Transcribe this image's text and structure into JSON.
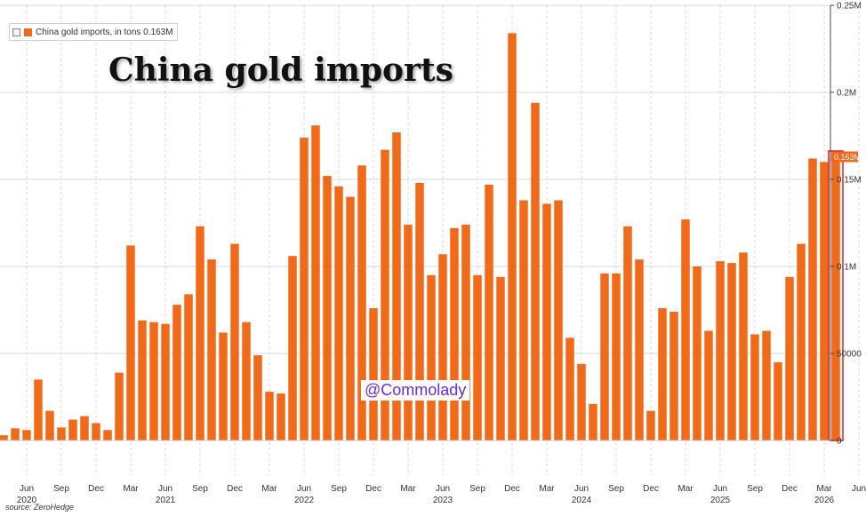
{
  "legend": {
    "label": "China gold imports, in tons 0.163M"
  },
  "title": "China gold imports",
  "watermark": "@Commolady",
  "source": "source: ZeroHedge",
  "last_value_label": "0.163M",
  "colors": {
    "bar": "#f06a1a",
    "highlight_box": "#e02020",
    "grid": "#d9d9d9",
    "label_bg": "#f06a1a"
  },
  "chart_data": {
    "type": "bar",
    "x": [
      "2020-04",
      "2020-05",
      "2020-06",
      "2020-07",
      "2020-08",
      "2020-09",
      "2020-10",
      "2020-11",
      "2020-12",
      "2021-01",
      "2021-02",
      "2021-03",
      "2021-04",
      "2021-05",
      "2021-06",
      "2021-07",
      "2021-08",
      "2021-09",
      "2021-10",
      "2021-11",
      "2021-12",
      "2022-01",
      "2022-02",
      "2022-03",
      "2022-04",
      "2022-05",
      "2022-06",
      "2022-07",
      "2022-08",
      "2022-09",
      "2022-10",
      "2022-11",
      "2022-12",
      "2023-01",
      "2023-02",
      "2023-03",
      "2023-04",
      "2023-05",
      "2023-06",
      "2023-07",
      "2023-08",
      "2023-09",
      "2023-10",
      "2023-11",
      "2023-12",
      "2024-01",
      "2024-02",
      "2024-03",
      "2024-04",
      "2024-05",
      "2024-06",
      "2024-07",
      "2024-08",
      "2024-09",
      "2024-10",
      "2024-11",
      "2024-12",
      "2025-01",
      "2025-02",
      "2025-03",
      "2025-04",
      "2025-05",
      "2025-06",
      "2025-07",
      "2025-08",
      "2025-09",
      "2025-10",
      "2025-11",
      "2025-12",
      "2026-01",
      "2026-02",
      "2026-03",
      "2026-04"
    ],
    "values": [
      3000,
      7000,
      6000,
      35000,
      17000,
      7500,
      12000,
      14000,
      10000,
      6000,
      39000,
      112000,
      69000,
      68000,
      67000,
      78000,
      84000,
      123000,
      104000,
      62000,
      113000,
      68000,
      49000,
      28000,
      27000,
      106000,
      174000,
      181000,
      152000,
      146000,
      140000,
      158000,
      76000,
      167000,
      177000,
      124000,
      148000,
      95000,
      107000,
      122000,
      124000,
      95000,
      147000,
      94000,
      234000,
      138000,
      194000,
      136000,
      138000,
      59000,
      44000,
      21000,
      96000,
      96000,
      123000,
      104000,
      17000,
      76000,
      74000,
      127000,
      100000,
      63000,
      103000,
      102000,
      108000,
      61000,
      63000,
      45000,
      94000,
      113000,
      162000,
      160000,
      163000
    ],
    "ylim": [
      0,
      250000
    ],
    "y_ticks": [
      0,
      50000,
      100000,
      150000,
      200000,
      250000
    ],
    "y_tick_labels": [
      "0",
      "50000",
      "0.1M",
      "0.15M",
      "0.2M",
      "0.25M"
    ],
    "x_ticks": [
      {
        "date": "2020-06",
        "month": "Jun",
        "year": "2020"
      },
      {
        "date": "2020-09",
        "month": "Sep",
        "year": ""
      },
      {
        "date": "2020-12",
        "month": "Dec",
        "year": ""
      },
      {
        "date": "2021-03",
        "month": "Mar",
        "year": ""
      },
      {
        "date": "2021-06",
        "month": "Jun",
        "year": "2021"
      },
      {
        "date": "2021-09",
        "month": "Sep",
        "year": ""
      },
      {
        "date": "2021-12",
        "month": "Dec",
        "year": ""
      },
      {
        "date": "2022-03",
        "month": "Mar",
        "year": ""
      },
      {
        "date": "2022-06",
        "month": "Jun",
        "year": "2022"
      },
      {
        "date": "2022-09",
        "month": "Sep",
        "year": ""
      },
      {
        "date": "2022-12",
        "month": "Dec",
        "year": ""
      },
      {
        "date": "2023-03",
        "month": "Mar",
        "year": ""
      },
      {
        "date": "2023-06",
        "month": "Jun",
        "year": "2023"
      },
      {
        "date": "2023-09",
        "month": "Sep",
        "year": ""
      },
      {
        "date": "2023-12",
        "month": "Dec",
        "year": ""
      },
      {
        "date": "2024-03",
        "month": "Mar",
        "year": ""
      },
      {
        "date": "2024-06",
        "month": "Jun",
        "year": "2024"
      },
      {
        "date": "2024-09",
        "month": "Sep",
        "year": ""
      },
      {
        "date": "2024-12",
        "month": "Dec",
        "year": ""
      },
      {
        "date": "2025-03",
        "month": "Mar",
        "year": ""
      },
      {
        "date": "2025-06",
        "month": "Jun",
        "year": "2025"
      },
      {
        "date": "2025-09",
        "month": "Sep",
        "year": ""
      },
      {
        "date": "2025-12",
        "month": "Dec",
        "year": ""
      },
      {
        "date": "2026-03",
        "month": "Mar",
        "year": "2026"
      },
      {
        "date": "2026-06",
        "month": "Jun",
        "year": ""
      }
    ],
    "grid": true,
    "legend_position": "top-left",
    "y_axis_side": "right"
  }
}
